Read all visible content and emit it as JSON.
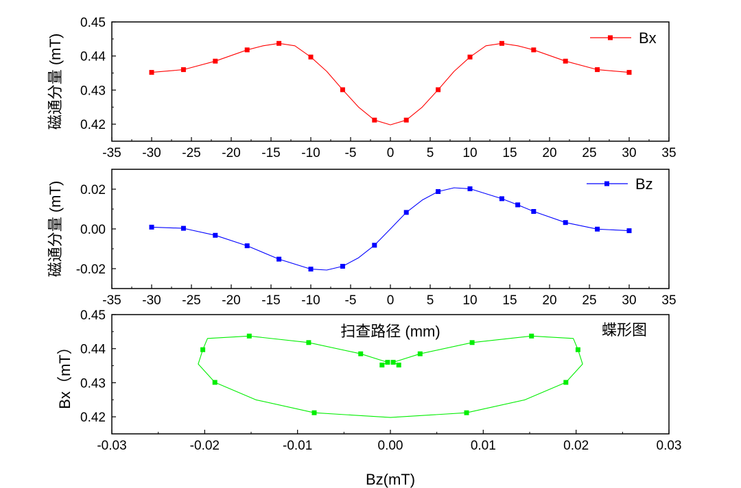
{
  "chart_data": [
    {
      "id": "bx",
      "type": "line",
      "ylabel": "磁通分量 (mT)",
      "xlabel": "",
      "xlim": [
        -35,
        35
      ],
      "ylim": [
        0.415,
        0.45
      ],
      "xticks": [
        -35,
        -30,
        -25,
        -20,
        -15,
        -10,
        -5,
        0,
        5,
        10,
        15,
        20,
        25,
        30,
        35
      ],
      "xtick_labels": [
        "-35",
        "-30",
        "-25",
        "-20",
        "-15",
        "-10",
        "-5",
        "0",
        "5",
        "10",
        "15",
        "20",
        "25",
        "30",
        "35"
      ],
      "yticks": [
        0.42,
        0.43,
        0.44,
        0.45
      ],
      "ytick_labels": [
        "0.42",
        "0.43",
        "0.44",
        "0.45"
      ],
      "legend": {
        "label": "Bx",
        "position": "top-right"
      },
      "color": "#ff0000",
      "markers": {
        "x": [
          -30,
          -26,
          -22,
          -18,
          -14,
          -10,
          -6,
          -2,
          2,
          6,
          10,
          14,
          18,
          22,
          26,
          30
        ],
        "y": [
          0.4352,
          0.436,
          0.4385,
          0.4418,
          0.4437,
          0.4397,
          0.4301,
          0.4212,
          0.4212,
          0.4301,
          0.4397,
          0.4437,
          0.4418,
          0.4385,
          0.436,
          0.4352
        ]
      },
      "curve": {
        "x": [
          -30,
          -26,
          -22,
          -18,
          -16,
          -14,
          -12,
          -10,
          -8,
          -6,
          -4,
          -2,
          0,
          2,
          4,
          6,
          8,
          10,
          12,
          14,
          16,
          18,
          22,
          26,
          30
        ],
        "y": [
          0.4352,
          0.436,
          0.4385,
          0.4418,
          0.443,
          0.4437,
          0.443,
          0.4397,
          0.4355,
          0.4301,
          0.425,
          0.4212,
          0.4198,
          0.4212,
          0.425,
          0.4301,
          0.4355,
          0.4397,
          0.443,
          0.4437,
          0.443,
          0.4418,
          0.4385,
          0.436,
          0.4352
        ]
      }
    },
    {
      "id": "bz",
      "type": "line",
      "ylabel": "磁通分量 (mT)",
      "xlabel": "扫查路径 (mm)",
      "xlim": [
        -35,
        35
      ],
      "ylim": [
        -0.03,
        0.03
      ],
      "xticks": [
        -35,
        -30,
        -25,
        -20,
        -15,
        -10,
        -5,
        0,
        5,
        10,
        15,
        20,
        25,
        30,
        35
      ],
      "xtick_labels": [
        "-35",
        "-30",
        "-25",
        "-20",
        "-15",
        "-10",
        "-5",
        "0",
        "5",
        "10",
        "15",
        "20",
        "25",
        "30",
        "35"
      ],
      "yticks": [
        -0.02,
        0.0,
        0.02
      ],
      "ytick_labels": [
        "-0.02",
        "0.00",
        "0.02"
      ],
      "legend": {
        "label": "Bz",
        "position": "top-right"
      },
      "color": "#0000ff",
      "markers": {
        "x": [
          -30,
          -26,
          -22,
          -18,
          -14,
          -10,
          -6,
          -2,
          2,
          6,
          10,
          14,
          16,
          18,
          22,
          26,
          30
        ],
        "y": [
          0.0009,
          0.0003,
          -0.0032,
          -0.0085,
          -0.0152,
          -0.0202,
          -0.0188,
          -0.0082,
          0.0083,
          0.0188,
          0.0202,
          0.0152,
          0.0121,
          0.0088,
          0.0032,
          -0.0001,
          -0.0009
        ]
      },
      "curve": {
        "x": [
          -30,
          -26,
          -22,
          -18,
          -14,
          -10,
          -8,
          -6,
          -4,
          -2,
          0,
          2,
          4,
          6,
          8,
          10,
          14,
          16,
          18,
          22,
          26,
          30
        ],
        "y": [
          0.0009,
          0.0003,
          -0.0032,
          -0.0085,
          -0.0152,
          -0.0202,
          -0.0207,
          -0.0188,
          -0.0145,
          -0.0082,
          0.0,
          0.0083,
          0.0145,
          0.0188,
          0.0207,
          0.0202,
          0.0152,
          0.0121,
          0.0088,
          0.0032,
          -0.0001,
          -0.0009
        ]
      }
    },
    {
      "id": "butterfly",
      "type": "line",
      "ylabel": "Bx（mT）",
      "xlabel": "Bz(mT)",
      "annotation": "蝶形图",
      "xlim": [
        -0.03,
        0.03
      ],
      "ylim": [
        0.415,
        0.45
      ],
      "xticks": [
        -0.03,
        -0.02,
        -0.01,
        0.0,
        0.01,
        0.02,
        0.03
      ],
      "xtick_labels": [
        "-0.03",
        "-0.02",
        "-0.01",
        "0.00",
        "0.01",
        "0.02",
        "0.03"
      ],
      "yticks": [
        0.42,
        0.43,
        0.44,
        0.45
      ],
      "ytick_labels": [
        "0.42",
        "0.43",
        "0.44",
        "0.45"
      ],
      "color": "#00ee00",
      "markers": {
        "x": [
          -0.0202,
          -0.0189,
          -0.0152,
          -0.0088,
          -0.0082,
          -0.0032,
          -0.0009,
          -0.0003,
          0.0003,
          0.0009,
          0.0032,
          0.0082,
          0.0088,
          0.0152,
          0.0189,
          0.0202
        ],
        "y": [
          0.4397,
          0.4301,
          0.4437,
          0.4418,
          0.4212,
          0.4385,
          0.4352,
          0.436,
          0.436,
          0.4352,
          0.4385,
          0.4212,
          0.4418,
          0.4437,
          0.4301,
          0.4397
        ]
      },
      "curve": {
        "x": [
          -0.0009,
          -0.0003,
          -0.0032,
          -0.0088,
          -0.0152,
          -0.0197,
          -0.0202,
          -0.0207,
          -0.0189,
          -0.0145,
          -0.0082,
          0.0,
          0.0082,
          0.0145,
          0.0189,
          0.0207,
          0.0202,
          0.0197,
          0.0152,
          0.0088,
          0.0032,
          0.0003,
          0.0009
        ],
        "y": [
          0.4352,
          0.436,
          0.4385,
          0.4418,
          0.4437,
          0.443,
          0.4397,
          0.4355,
          0.4301,
          0.425,
          0.4212,
          0.4198,
          0.4212,
          0.425,
          0.4301,
          0.4355,
          0.4397,
          0.443,
          0.4437,
          0.4418,
          0.4385,
          0.436,
          0.4352
        ]
      }
    }
  ]
}
